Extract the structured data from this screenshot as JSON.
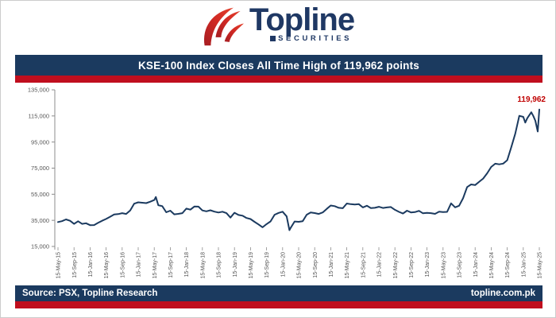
{
  "logo": {
    "brand": "Topline",
    "sub": "SECURITIES",
    "brand_color": "#1F3864",
    "swoosh_colors": [
      "#E2402C",
      "#A61D22"
    ]
  },
  "banner": {
    "title": "KSE-100 Index Closes All Time High of 119,962 points",
    "bg": "#1B3A5F",
    "stripe": "#C00E1E",
    "text_color": "#FFFFFF"
  },
  "footer": {
    "source": "Source: PSX, Topline Research",
    "website": "topline.com.pk",
    "bg": "#1B3A5F",
    "stripe": "#C00E1E"
  },
  "chart_data": {
    "type": "line",
    "title": "KSE-100 Index Closes All Time High of 119,962 points",
    "series_name": "KSE-100 Index",
    "line_color": "#1B3A5F",
    "grid": false,
    "legend": "none",
    "ylim": [
      15000,
      135000
    ],
    "y_ticks": [
      15000,
      35000,
      55000,
      75000,
      95000,
      115000,
      135000
    ],
    "x_tick_labels": [
      "15-May-15",
      "15-Sep-15",
      "15-Jan-16",
      "15-May-16",
      "15-Sep-16",
      "15-Jan-17",
      "15-May-17",
      "15-Sep-17",
      "15-Jan-18",
      "15-May-18",
      "15-Sep-18",
      "15-Jan-19",
      "15-May-19",
      "15-Sep-19",
      "15-Jan-20",
      "15-May-20",
      "15-Sep-20",
      "15-Jan-21",
      "15-May-21",
      "15-Sep-21",
      "15-Jan-22",
      "15-May-22",
      "15-Sep-22",
      "15-Jan-23",
      "15-May-23",
      "15-Sep-23",
      "15-Jan-24",
      "15-May-24",
      "15-Sep-24",
      "15-Jan-25",
      "15-May-25"
    ],
    "x_months_span": 120,
    "annotation": {
      "text": "119,962",
      "value": 119962,
      "color": "#C00000"
    },
    "points": [
      [
        0,
        33700
      ],
      [
        1,
        34400
      ],
      [
        2,
        35700
      ],
      [
        3,
        34700
      ],
      [
        4,
        32300
      ],
      [
        5,
        34300
      ],
      [
        6,
        32300
      ],
      [
        7,
        32800
      ],
      [
        8,
        31300
      ],
      [
        9,
        31400
      ],
      [
        10,
        33100
      ],
      [
        11,
        34700
      ],
      [
        12,
        36100
      ],
      [
        13,
        37800
      ],
      [
        14,
        39500
      ],
      [
        15,
        39800
      ],
      [
        16,
        40500
      ],
      [
        17,
        39900
      ],
      [
        18,
        42600
      ],
      [
        19,
        47800
      ],
      [
        20,
        48800
      ],
      [
        21,
        48500
      ],
      [
        22,
        48200
      ],
      [
        23,
        49300
      ],
      [
        24,
        50600
      ],
      [
        24.4,
        52900
      ],
      [
        25,
        46600
      ],
      [
        26,
        45900
      ],
      [
        27,
        41200
      ],
      [
        28,
        42400
      ],
      [
        29,
        39600
      ],
      [
        30,
        40000
      ],
      [
        31,
        40500
      ],
      [
        32,
        44000
      ],
      [
        33,
        43200
      ],
      [
        34,
        45600
      ],
      [
        35,
        45500
      ],
      [
        36,
        42600
      ],
      [
        37,
        41900
      ],
      [
        38,
        42700
      ],
      [
        39,
        41700
      ],
      [
        40,
        41000
      ],
      [
        41,
        41600
      ],
      [
        42,
        40500
      ],
      [
        43,
        37100
      ],
      [
        44,
        40800
      ],
      [
        45,
        39100
      ],
      [
        46,
        38600
      ],
      [
        47,
        36800
      ],
      [
        48,
        36000
      ],
      [
        49,
        33900
      ],
      [
        50,
        31900
      ],
      [
        51,
        29700
      ],
      [
        52,
        32100
      ],
      [
        53,
        34200
      ],
      [
        54,
        39300
      ],
      [
        55,
        40700
      ],
      [
        56,
        41600
      ],
      [
        57,
        38000
      ],
      [
        57.7,
        27500
      ],
      [
        58,
        29200
      ],
      [
        59,
        34100
      ],
      [
        60,
        33900
      ],
      [
        61,
        34400
      ],
      [
        62,
        39300
      ],
      [
        63,
        41100
      ],
      [
        64,
        40600
      ],
      [
        65,
        39900
      ],
      [
        66,
        41100
      ],
      [
        67,
        43800
      ],
      [
        68,
        46400
      ],
      [
        69,
        45900
      ],
      [
        70,
        44600
      ],
      [
        71,
        44300
      ],
      [
        72,
        47900
      ],
      [
        73,
        47400
      ],
      [
        74,
        47100
      ],
      [
        75,
        47400
      ],
      [
        76,
        44900
      ],
      [
        77,
        46200
      ],
      [
        78,
        44400
      ],
      [
        79,
        44600
      ],
      [
        80,
        45400
      ],
      [
        81,
        44500
      ],
      [
        82,
        44900
      ],
      [
        83,
        45200
      ],
      [
        84,
        43100
      ],
      [
        85,
        41500
      ],
      [
        86,
        40200
      ],
      [
        87,
        42400
      ],
      [
        88,
        41100
      ],
      [
        89,
        41300
      ],
      [
        90,
        42300
      ],
      [
        91,
        40400
      ],
      [
        92,
        40700
      ],
      [
        93,
        40500
      ],
      [
        94,
        40000
      ],
      [
        95,
        41600
      ],
      [
        96,
        41300
      ],
      [
        97,
        41500
      ],
      [
        98,
        48000
      ],
      [
        99,
        45000
      ],
      [
        100,
        46200
      ],
      [
        101,
        51900
      ],
      [
        102,
        60500
      ],
      [
        103,
        62500
      ],
      [
        104,
        62000
      ],
      [
        105,
        64600
      ],
      [
        106,
        67000
      ],
      [
        107,
        71100
      ],
      [
        108,
        75900
      ],
      [
        109,
        78400
      ],
      [
        110,
        77900
      ],
      [
        111,
        78500
      ],
      [
        112,
        81100
      ],
      [
        113,
        90900
      ],
      [
        114,
        101400
      ],
      [
        115,
        115100
      ],
      [
        116,
        114300
      ],
      [
        116.5,
        109900
      ],
      [
        117,
        113300
      ],
      [
        118,
        117800
      ],
      [
        118.5,
        115000
      ],
      [
        119,
        111300
      ],
      [
        119.6,
        103100
      ],
      [
        120,
        119962
      ]
    ]
  }
}
